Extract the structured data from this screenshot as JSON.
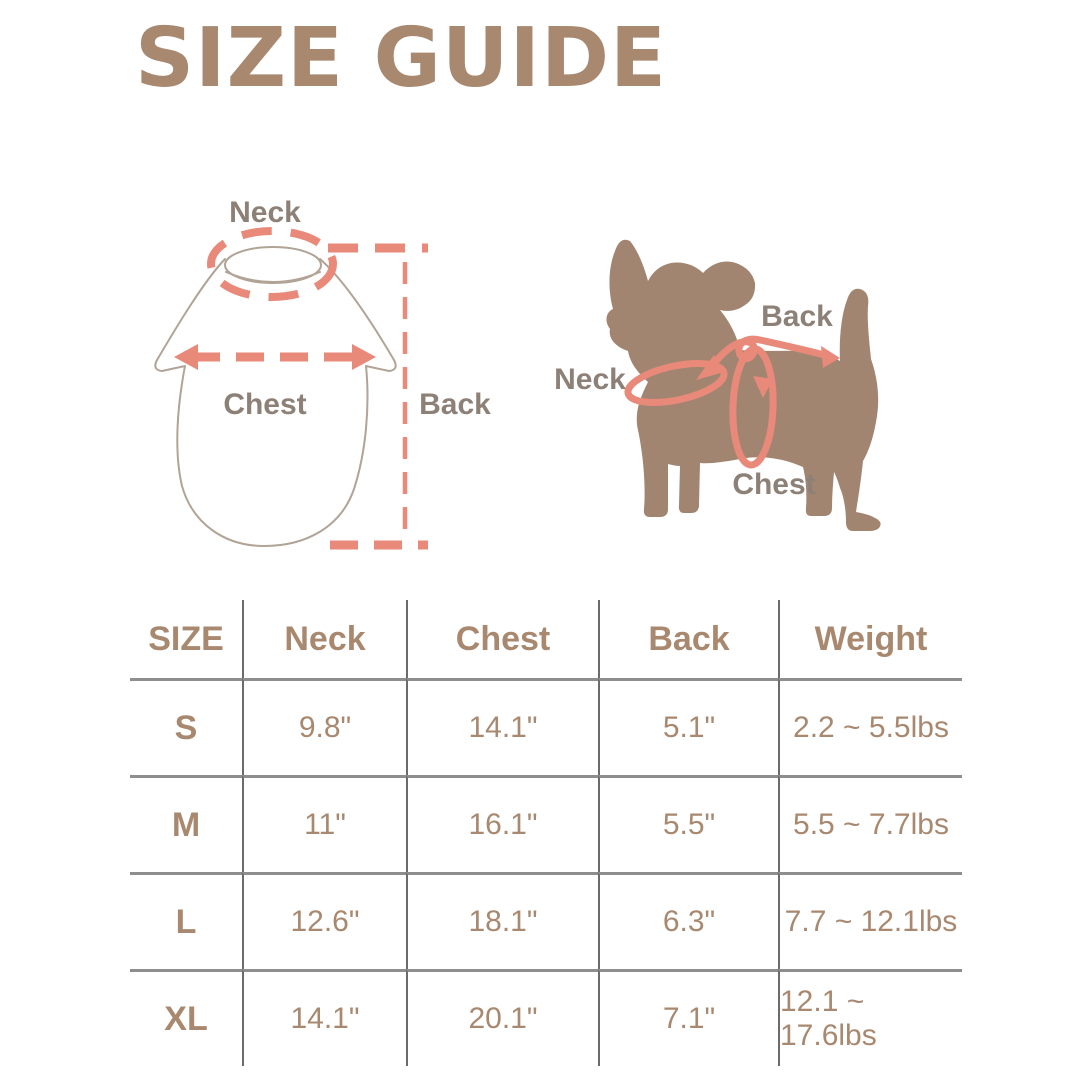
{
  "title": "SIZE GUIDE",
  "colors": {
    "title_brown": "#a8886f",
    "table_text_brown": "#a8886f",
    "diagram_label_gray": "#8d8177",
    "measure_coral": "#e8897a",
    "dog_brown": "#a28570",
    "garment_outline": "#b1a396",
    "grid_vertical_line": "#6b6b6b",
    "grid_horizontal_line": "#8e8e8e",
    "background": "#ffffff"
  },
  "garment_diagram": {
    "labels": {
      "neck": "Neck",
      "chest": "Chest",
      "back": "Back"
    }
  },
  "dog_diagram": {
    "labels": {
      "neck": "Neck",
      "back": "Back",
      "chest": "Chest"
    }
  },
  "size_table": {
    "columns": [
      "SIZE",
      "Neck",
      "Chest",
      "Back",
      "Weight"
    ],
    "column_keys": [
      "size",
      "neck",
      "chest",
      "back",
      "weight"
    ],
    "rows": [
      {
        "size": "S",
        "neck": "9.8\"",
        "chest": "14.1\"",
        "back": "5.1\"",
        "weight": "2.2 ~ 5.5lbs"
      },
      {
        "size": "M",
        "neck": "11\"",
        "chest": "16.1\"",
        "back": "5.5\"",
        "weight": "5.5 ~ 7.7lbs"
      },
      {
        "size": "L",
        "neck": "12.6\"",
        "chest": "18.1\"",
        "back": "6.3\"",
        "weight": "7.7 ~ 12.1lbs"
      },
      {
        "size": "XL",
        "neck": "14.1\"",
        "chest": "20.1\"",
        "back": "7.1\"",
        "weight": "12.1 ~ 17.6lbs"
      }
    ]
  }
}
